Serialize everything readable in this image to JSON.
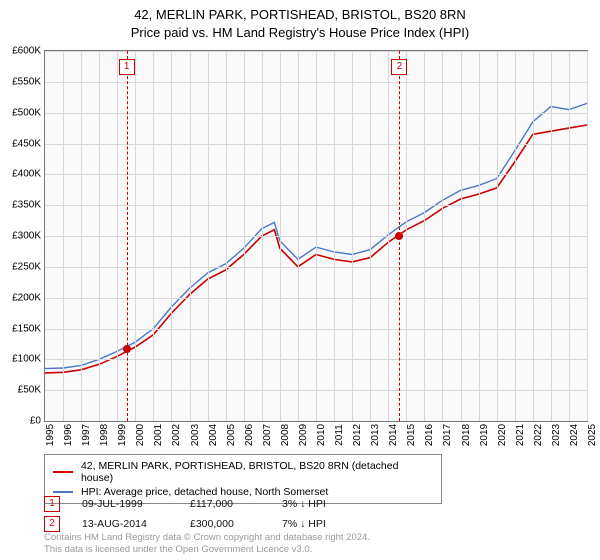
{
  "title_line1": "42, MERLIN PARK, PORTISHEAD, BRISTOL, BS20 8RN",
  "title_line2": "Price paid vs. HM Land Registry's House Price Index (HPI)",
  "chart": {
    "type": "line",
    "background_color": "#f9f9fa",
    "grid_color": "#d8d8d8",
    "border_color": "#777777",
    "ylim": [
      0,
      600000
    ],
    "ytick_step": 50000,
    "ytick_prefix": "£",
    "ytick_suffix_thousand": "K",
    "yticks": [
      "£0",
      "£50K",
      "£100K",
      "£150K",
      "£200K",
      "£250K",
      "£300K",
      "£350K",
      "£400K",
      "£450K",
      "£500K",
      "£550K",
      "£600K"
    ],
    "xlim": [
      1995,
      2025
    ],
    "xtick_step": 1,
    "xticks": [
      "1995",
      "1996",
      "1997",
      "1998",
      "1999",
      "2000",
      "2001",
      "2002",
      "2003",
      "2004",
      "2005",
      "2006",
      "2007",
      "2008",
      "2009",
      "2010",
      "2011",
      "2012",
      "2013",
      "2014",
      "2015",
      "2016",
      "2017",
      "2018",
      "2019",
      "2020",
      "2021",
      "2022",
      "2023",
      "2024",
      "2025"
    ],
    "series": [
      {
        "name": "price_paid",
        "label": "42, MERLIN PARK, PORTISHEAD, BRISTOL, BS20 8RN (detached house)",
        "color": "#cc0000",
        "line_width": 1.6,
        "x": [
          1995,
          1996,
          1997,
          1998,
          1999,
          2000,
          2001,
          2002,
          2003,
          2004,
          2005,
          2006,
          2007,
          2007.7,
          2008,
          2009,
          2010,
          2011,
          2012,
          2013,
          2014,
          2015,
          2016,
          2017,
          2018,
          2019,
          2020,
          2021,
          2022,
          2023,
          2024,
          2025
        ],
        "y": [
          78000,
          79000,
          83000,
          92000,
          105000,
          120000,
          140000,
          175000,
          205000,
          230000,
          245000,
          270000,
          300000,
          310000,
          280000,
          250000,
          270000,
          262000,
          258000,
          265000,
          290000,
          310000,
          325000,
          345000,
          360000,
          368000,
          378000,
          420000,
          465000,
          470000,
          475000,
          480000
        ]
      },
      {
        "name": "hpi",
        "label": "HPI: Average price, detached house, North Somerset",
        "color": "#4a78c9",
        "line_width": 1.4,
        "x": [
          1995,
          1996,
          1997,
          1998,
          1999,
          2000,
          2001,
          2002,
          2003,
          2004,
          2005,
          2006,
          2007,
          2007.7,
          2008,
          2009,
          2010,
          2011,
          2012,
          2013,
          2014,
          2015,
          2016,
          2017,
          2018,
          2019,
          2020,
          2021,
          2022,
          2023,
          2024,
          2025
        ],
        "y": [
          85000,
          86000,
          90000,
          100000,
          113000,
          128000,
          150000,
          185000,
          215000,
          240000,
          255000,
          280000,
          312000,
          322000,
          292000,
          262000,
          282000,
          274000,
          270000,
          278000,
          302000,
          323000,
          338000,
          358000,
          374000,
          382000,
          393000,
          438000,
          485000,
          510000,
          505000,
          515000
        ]
      }
    ],
    "markers": [
      {
        "n": "1",
        "x": 1999.52,
        "y": 117000
      },
      {
        "n": "2",
        "x": 2014.62,
        "y": 300000
      }
    ],
    "marker_vline_color": "#cc0000",
    "marker_box_border": "#cc0000",
    "marker_dot_color": "#cc0000"
  },
  "legend": {
    "items": [
      {
        "color": "#cc0000",
        "label": "42, MERLIN PARK, PORTISHEAD, BRISTOL, BS20 8RN (detached house)"
      },
      {
        "color": "#4a78c9",
        "label": "HPI: Average price, detached house, North Somerset"
      }
    ]
  },
  "sales": [
    {
      "n": "1",
      "date": "09-JUL-1999",
      "price": "£117,000",
      "change": "3% ↓ HPI"
    },
    {
      "n": "2",
      "date": "13-AUG-2014",
      "price": "£300,000",
      "change": "7% ↓ HPI"
    }
  ],
  "footer_line1": "Contains HM Land Registry data © Crown copyright and database right 2024.",
  "footer_line2": "This data is licensed under the Open Government Licence v3.0."
}
